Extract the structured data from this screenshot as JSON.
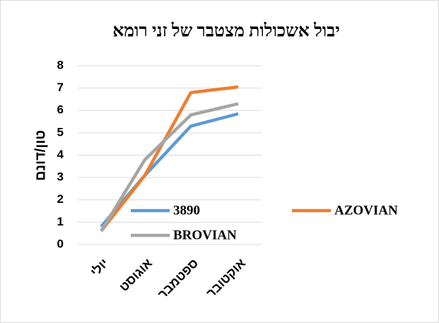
{
  "chart_data": {
    "type": "line",
    "title": "יבול אשכולות מצטבר של זני רומא",
    "y_label": "טון/דונם",
    "categories": [
      "יולי",
      "אוגוסט",
      "ספטמבר",
      "אוקטובר"
    ],
    "series": [
      {
        "name": "3890",
        "color": "#5b9bd5",
        "values": [
          0.8,
          3.1,
          5.3,
          5.85
        ]
      },
      {
        "name": "AZOVIAN",
        "color": "#ed7d31",
        "values": [
          0.6,
          3.1,
          6.8,
          7.05
        ]
      },
      {
        "name": "BROVIAN",
        "color": "#a5a5a5",
        "values": [
          0.6,
          3.8,
          5.8,
          6.3
        ]
      }
    ],
    "ylim": [
      0,
      8
    ],
    "yticks": [
      0,
      1,
      2,
      3,
      4,
      5,
      6,
      7,
      8
    ],
    "grid": true
  }
}
